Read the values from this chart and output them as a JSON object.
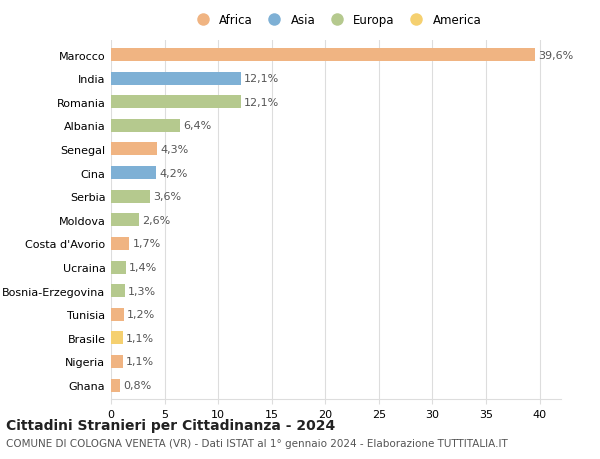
{
  "countries": [
    "Marocco",
    "India",
    "Romania",
    "Albania",
    "Senegal",
    "Cina",
    "Serbia",
    "Moldova",
    "Costa d'Avorio",
    "Ucraina",
    "Bosnia-Erzegovina",
    "Tunisia",
    "Brasile",
    "Nigeria",
    "Ghana"
  ],
  "values": [
    39.6,
    12.1,
    12.1,
    6.4,
    4.3,
    4.2,
    3.6,
    2.6,
    1.7,
    1.4,
    1.3,
    1.2,
    1.1,
    1.1,
    0.8
  ],
  "continents": [
    "Africa",
    "Asia",
    "Europa",
    "Europa",
    "Africa",
    "Asia",
    "Europa",
    "Europa",
    "Africa",
    "Europa",
    "Europa",
    "Africa",
    "America",
    "Africa",
    "Africa"
  ],
  "continent_colors": {
    "Africa": "#F0B482",
    "Asia": "#7EB0D5",
    "Europa": "#B5C98E",
    "America": "#F5D070"
  },
  "legend_order": [
    "Africa",
    "Asia",
    "Europa",
    "America"
  ],
  "xlim": [
    0,
    42
  ],
  "xticks": [
    0,
    5,
    10,
    15,
    20,
    25,
    30,
    35,
    40
  ],
  "title": "Cittadini Stranieri per Cittadinanza - 2024",
  "subtitle": "COMUNE DI COLOGNA VENETA (VR) - Dati ISTAT al 1° gennaio 2024 - Elaborazione TUTTITALIA.IT",
  "title_fontsize": 10,
  "subtitle_fontsize": 7.5,
  "label_fontsize": 8,
  "tick_fontsize": 8,
  "legend_fontsize": 8.5,
  "bar_height": 0.55,
  "background_color": "#ffffff",
  "grid_color": "#dddddd",
  "value_label_color": "#555555"
}
